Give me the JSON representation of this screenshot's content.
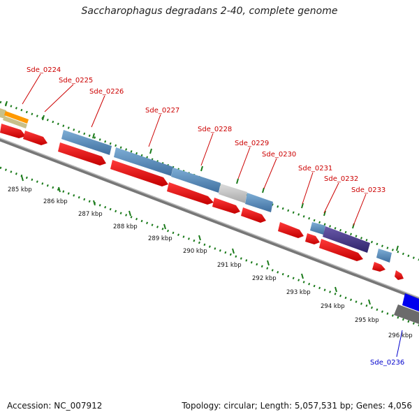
{
  "title": "Saccharophagus degradans 2-40, complete genome",
  "footer": {
    "accession": "Accession: NC_007912",
    "summary": "Topology: circular; Length: 5,057,531 bp; Genes: 4,056"
  },
  "gene_labels": [
    {
      "name": "Sde_0224",
      "color": "#cc0000"
    },
    {
      "name": "Sde_0225",
      "color": "#cc0000"
    },
    {
      "name": "Sde_0226",
      "color": "#cc0000"
    },
    {
      "name": "Sde_0227",
      "color": "#cc0000"
    },
    {
      "name": "Sde_0228",
      "color": "#cc0000"
    },
    {
      "name": "Sde_0229",
      "color": "#cc0000"
    },
    {
      "name": "Sde_0230",
      "color": "#cc0000"
    },
    {
      "name": "Sde_0231",
      "color": "#cc0000"
    },
    {
      "name": "Sde_0232",
      "color": "#cc0000"
    },
    {
      "name": "Sde_0233",
      "color": "#cc0000"
    },
    {
      "name": "Sde_0236",
      "color": "#0000cc"
    }
  ],
  "kbp_ticks": [
    "285 kbp",
    "286 kbp",
    "287 kbp",
    "288 kbp",
    "289 kbp",
    "290 kbp",
    "291 kbp",
    "292 kbp",
    "293 kbp",
    "294 kbp",
    "295 kbp",
    "296 kbp"
  ],
  "colors": {
    "cds": "#ff0000",
    "blue_feature": "#4682b4",
    "backbone": "#999999",
    "tick": "#1a7a1a"
  }
}
